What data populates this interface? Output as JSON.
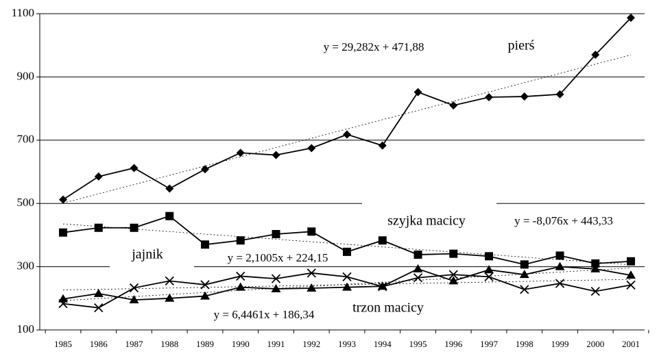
{
  "chart_data": {
    "type": "line",
    "categories": [
      "1985",
      "1986",
      "1987",
      "1988",
      "1989",
      "1990",
      "1991",
      "1992",
      "1993",
      "1994",
      "1995",
      "1996",
      "1997",
      "1998",
      "1999",
      "2000",
      "2001"
    ],
    "ylim": [
      100,
      1100
    ],
    "yticks": [
      100,
      300,
      500,
      700,
      900,
      1100
    ],
    "grid": true,
    "series": [
      {
        "name": "pierś",
        "color": "#000000",
        "marker": "diamond",
        "values": [
          512,
          585,
          612,
          547,
          608,
          660,
          653,
          675,
          718,
          683,
          852,
          810,
          836,
          838,
          845,
          970,
          1087
        ],
        "trendline": {
          "label": "y = 29,282x + 471,88",
          "slope": 29.282,
          "intercept": 471.88
        }
      },
      {
        "name": "szyjka macicy",
        "color": "#000000",
        "marker": "square",
        "values": [
          408,
          423,
          423,
          460,
          370,
          383,
          403,
          411,
          347,
          383,
          338,
          341,
          333,
          307,
          335,
          310,
          317
        ],
        "trendline": {
          "label": "y = -8,076x + 443,33",
          "slope": -8.076,
          "intercept": 443.33
        }
      },
      {
        "name": "jajnik",
        "color": "#000000",
        "marker": "x",
        "values": [
          183,
          170,
          233,
          255,
          243,
          270,
          262,
          280,
          268,
          237,
          265,
          275,
          268,
          228,
          247,
          222,
          242
        ],
        "trendline": {
          "label": "y = 2,1005x + 224,15",
          "slope": 2.1005,
          "intercept": 224.15
        }
      },
      {
        "name": "trzon macicy",
        "color": "#000000",
        "marker": "triangle",
        "values": [
          198,
          215,
          195,
          200,
          207,
          235,
          230,
          232,
          235,
          238,
          293,
          255,
          290,
          275,
          300,
          293,
          273
        ],
        "trendline": {
          "label": "y = 6,4461x + 186,34",
          "slope": 6.4461,
          "intercept": 186.34
        }
      }
    ]
  }
}
